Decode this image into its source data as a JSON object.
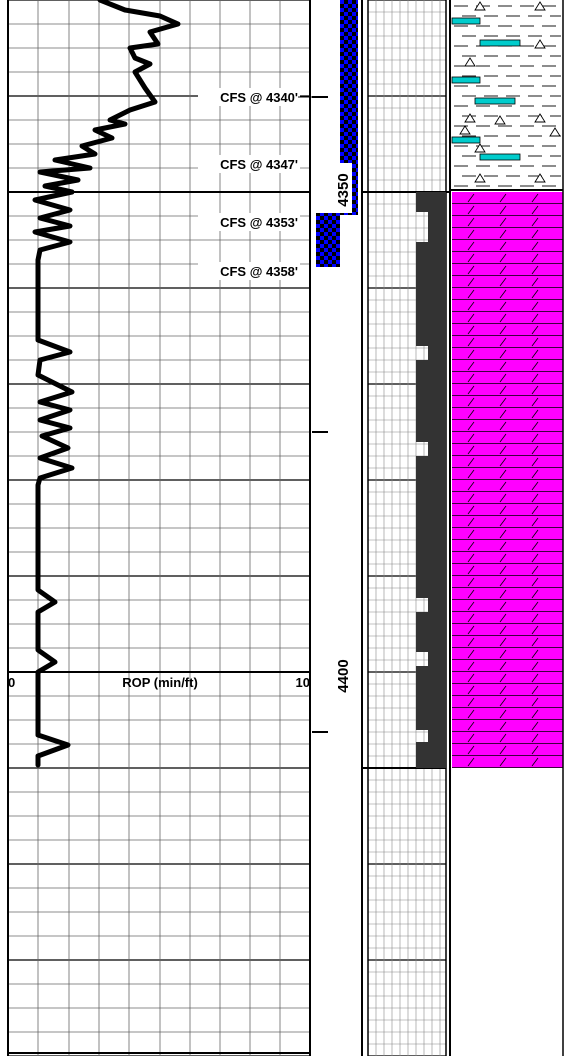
{
  "depth_track": {
    "labels": [
      {
        "depth": 4350,
        "text": "4350"
      },
      {
        "depth": 4400,
        "text": "4400"
      }
    ]
  },
  "rop_track": {
    "scale_min": "0",
    "scale_max": "10",
    "title": "ROP (min/ft)",
    "curve_color": "#000000"
  },
  "annotations": [
    {
      "text": "CFS @ 4340'",
      "depth": 4340
    },
    {
      "text": "CFS @ 4347'",
      "depth": 4347
    },
    {
      "text": "CFS @ 4353'",
      "depth": 4353
    },
    {
      "text": "CFS @ 4358'",
      "depth": 4358
    }
  ],
  "colors": {
    "sample_interval": "#0000ff",
    "limestone": "#ff00ff",
    "chert_sand": "#00cccc",
    "porosity_column": "#333333"
  },
  "lithology": [
    {
      "name": "sandy-shale",
      "top": 4331,
      "bottom": 4351
    },
    {
      "name": "limestone",
      "top": 4351,
      "bottom": 4411
    }
  ]
}
